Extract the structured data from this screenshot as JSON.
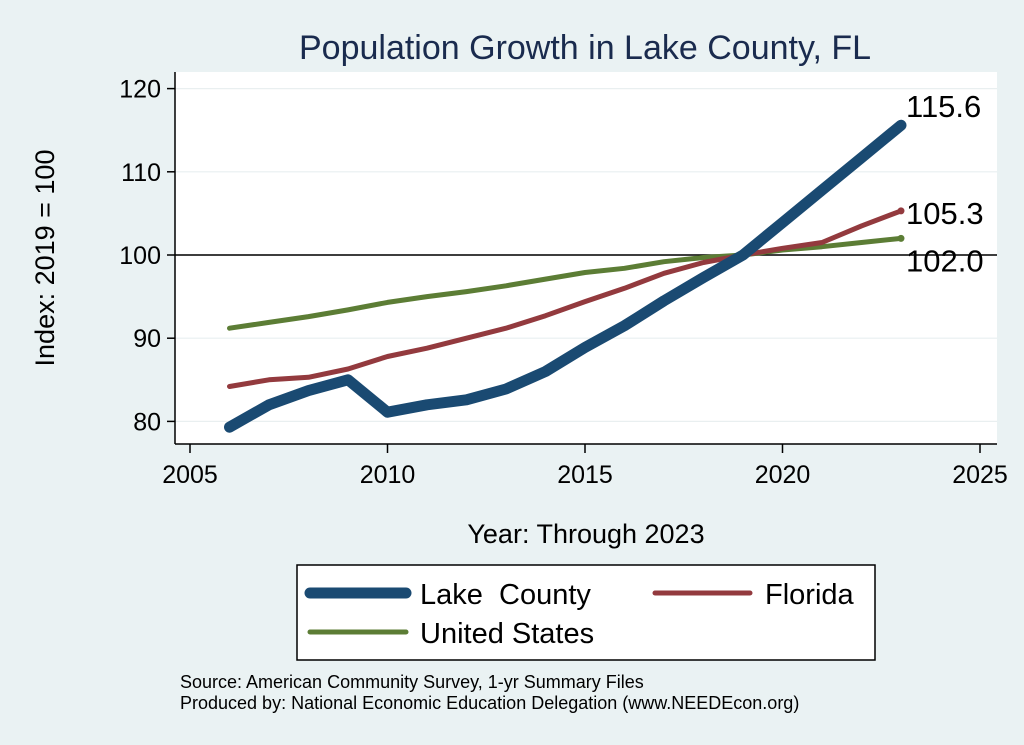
{
  "chart_data": {
    "type": "line",
    "title": "Population Growth in Lake County, FL",
    "xlabel": "Year: Through 2023",
    "ylabel": "Index: 2019 = 100",
    "xlim": [
      2005,
      2025
    ],
    "ylim": [
      77.5,
      122
    ],
    "xticks": [
      "2005",
      "2010",
      "2015",
      "2020",
      "2025"
    ],
    "yticks": [
      "80",
      "90",
      "100",
      "110",
      "120"
    ],
    "reference_line": 100,
    "x": [
      2006,
      2007,
      2008,
      2009,
      2010,
      2011,
      2012,
      2013,
      2014,
      2015,
      2016,
      2017,
      2018,
      2019,
      2020,
      2021,
      2022,
      2023
    ],
    "series": [
      {
        "name": "Lake  County",
        "color": "#1a4a72",
        "values": [
          79.3,
          82.0,
          83.7,
          85.0,
          81.1,
          82.0,
          82.6,
          83.9,
          86.0,
          88.9,
          91.5,
          94.5,
          97.3,
          100.0,
          103.9,
          107.8,
          111.7,
          115.6
        ],
        "end_label": "115.6"
      },
      {
        "name": "Florida",
        "color": "#933a3e",
        "values": [
          84.2,
          85.0,
          85.3,
          86.3,
          87.8,
          88.8,
          90.0,
          91.2,
          92.7,
          94.4,
          96.0,
          97.8,
          99.1,
          100.0,
          100.8,
          101.5,
          103.5,
          105.3
        ],
        "end_label": "105.3"
      },
      {
        "name": "United States",
        "color": "#5c7d35",
        "values": [
          91.2,
          91.9,
          92.6,
          93.4,
          94.3,
          95.0,
          95.6,
          96.3,
          97.1,
          97.9,
          98.4,
          99.2,
          99.7,
          100.0,
          100.6,
          101.0,
          101.5,
          102.0
        ],
        "end_label": "102.0"
      }
    ],
    "legend": {
      "items": [
        "Lake  County",
        "Florida",
        "United States"
      ],
      "placement": "bottom"
    },
    "grid": true,
    "source_lines": [
      "Source: American Community Survey, 1-yr Summary Files",
      "Produced by: National Economic Education Delegation (www.NEEDEcon.org)"
    ]
  }
}
